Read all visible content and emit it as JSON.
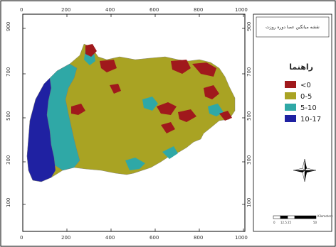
{
  "map": {
    "title": "نقشه میانگین عصا دوره روزت",
    "legend_title": "راهنما",
    "legend": [
      {
        "label": "<0",
        "color": "#a0191c"
      },
      {
        "label": "0-5",
        "color": "#a9a323"
      },
      {
        "label": "5-10",
        "color": "#2fa8a6"
      },
      {
        "label": "10-17",
        "color": "#1f21a2"
      }
    ],
    "x_ticks": [
      "0",
      "200",
      "400",
      "600",
      "800",
      "1000"
    ],
    "y_ticks": [
      "900",
      "700",
      "500",
      "300",
      "100"
    ],
    "scale_bar": {
      "labels": [
        "0",
        "12.5",
        "25",
        "50"
      ],
      "unit": "Kilometers"
    },
    "north_arrow_icon": "compass-rose-icon"
  }
}
